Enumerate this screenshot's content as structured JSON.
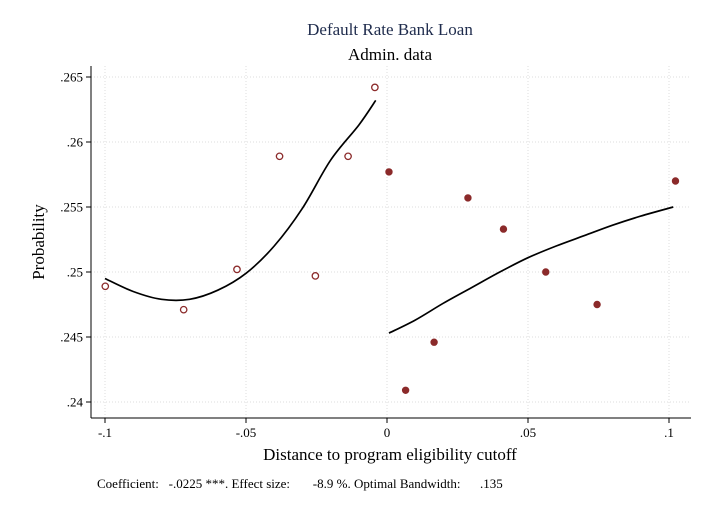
{
  "chart_data": {
    "type": "scatter",
    "title": "Default Rate Bank Loan",
    "subtitle": "Admin. data",
    "xlabel": "Distance to program eligibility cutoff",
    "ylabel": "Probability",
    "xlim": [
      -0.1,
      0.1
    ],
    "ylim": [
      0.24,
      0.265
    ],
    "x_ticks": [
      -0.1,
      -0.05,
      0,
      0.05,
      0.1
    ],
    "x_tick_labels": [
      "-.1",
      "-.05",
      "0",
      ".05",
      ".1"
    ],
    "y_ticks": [
      0.24,
      0.245,
      0.25,
      0.255,
      0.26,
      0.265
    ],
    "y_tick_labels": [
      ".24",
      ".245",
      ".25",
      ".255",
      ".26",
      ".265"
    ],
    "grid": true,
    "series": [
      {
        "marker": "hollow-circle",
        "color": "#8b2a2a",
        "points": [
          {
            "x": -0.0999,
            "y": 0.2489
          },
          {
            "x": -0.0721,
            "y": 0.2471
          },
          {
            "x": -0.0532,
            "y": 0.2502
          },
          {
            "x": -0.0381,
            "y": 0.2589
          },
          {
            "x": -0.0254,
            "y": 0.2497
          },
          {
            "x": -0.0138,
            "y": 0.2589
          },
          {
            "x": -0.0043,
            "y": 0.2642
          }
        ]
      },
      {
        "marker": "filled-circle",
        "color": "#8b2a2a",
        "points": [
          {
            "x": 0.0007,
            "y": 0.2577
          },
          {
            "x": 0.0066,
            "y": 0.2409
          },
          {
            "x": 0.0167,
            "y": 0.2446
          },
          {
            "x": 0.0287,
            "y": 0.2557
          },
          {
            "x": 0.0413,
            "y": 0.2533
          },
          {
            "x": 0.0563,
            "y": 0.25
          },
          {
            "x": 0.0745,
            "y": 0.2475
          },
          {
            "x": 0.1023,
            "y": 0.257
          }
        ]
      }
    ],
    "fits": [
      {
        "type": "line",
        "color": "#000000",
        "points": [
          {
            "x": -0.1,
            "y": 0.2495
          },
          {
            "x": -0.09,
            "y": 0.2485
          },
          {
            "x": -0.08,
            "y": 0.2479
          },
          {
            "x": -0.07,
            "y": 0.2479
          },
          {
            "x": -0.06,
            "y": 0.2486
          },
          {
            "x": -0.05,
            "y": 0.2499
          },
          {
            "x": -0.04,
            "y": 0.252
          },
          {
            "x": -0.03,
            "y": 0.2549
          },
          {
            "x": -0.02,
            "y": 0.2586
          },
          {
            "x": -0.01,
            "y": 0.2613
          },
          {
            "x": -0.004,
            "y": 0.2632
          }
        ]
      },
      {
        "type": "line",
        "color": "#000000",
        "points": [
          {
            "x": 0.0007,
            "y": 0.2453
          },
          {
            "x": 0.01,
            "y": 0.2463
          },
          {
            "x": 0.02,
            "y": 0.2476
          },
          {
            "x": 0.03,
            "y": 0.2488
          },
          {
            "x": 0.04,
            "y": 0.25
          },
          {
            "x": 0.05,
            "y": 0.2511
          },
          {
            "x": 0.06,
            "y": 0.252
          },
          {
            "x": 0.07,
            "y": 0.2528
          },
          {
            "x": 0.08,
            "y": 0.2536
          },
          {
            "x": 0.09,
            "y": 0.2543
          },
          {
            "x": 0.1015,
            "y": 0.255
          }
        ]
      }
    ]
  },
  "footnote": {
    "coefficient_label": "Coefficient:",
    "coefficient_value": "-.0225 ***.",
    "effect_label": "Effect size:",
    "effect_value": "-8.9 %.",
    "bandwidth_label": "Optimal Bandwidth:",
    "bandwidth_value": ".135"
  },
  "colors": {
    "title": "#1e2b4c",
    "marker": "#8b2a2a",
    "grid": "#dcdcdc",
    "fit": "#000000"
  }
}
